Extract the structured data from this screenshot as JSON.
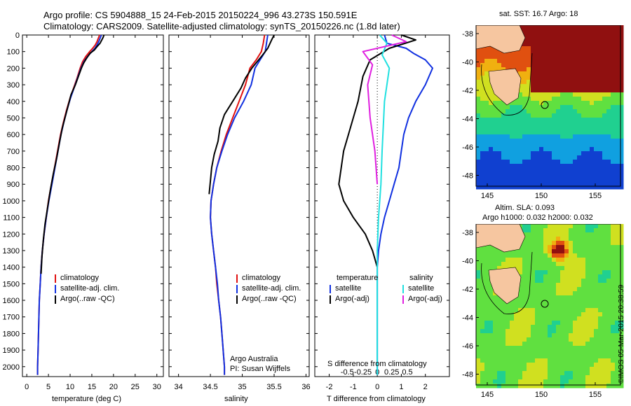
{
  "header": {
    "line1": "Argo profile: CS 5904888_15 24-Feb-2015 20150224_996 43.273S 150.591E",
    "line2": "Climatology: CARS2009. Satellite-adjusted climatology: synTS_20150226.nc (1.8d later)"
  },
  "colors": {
    "climatology": "#e01010",
    "satellite": "#1030e0",
    "argo": "#000000",
    "s_satellite": "#20e0e0",
    "s_argo": "#e020e0"
  },
  "depth_axis": {
    "ticks": [
      0,
      100,
      200,
      300,
      400,
      500,
      600,
      700,
      800,
      900,
      1000,
      1100,
      1200,
      1300,
      1400,
      1500,
      1600,
      1700,
      1800,
      1900,
      2000
    ],
    "range": [
      0,
      2060
    ]
  },
  "chart_data": [
    {
      "type": "line",
      "xlabel": "temperature (deg C)",
      "xlim": [
        -1,
        31.5
      ],
      "xticks": [
        0,
        5,
        10,
        15,
        20,
        25,
        30
      ],
      "legend": [
        "climatology",
        "satellite-adj. clim.",
        "Argo(..raw -QC)"
      ],
      "series": [
        {
          "name": "climatology",
          "color": "#e01010",
          "points": [
            [
              16.8,
              0
            ],
            [
              16.5,
              20
            ],
            [
              16.2,
              40
            ],
            [
              15.8,
              60
            ],
            [
              15.2,
              80
            ],
            [
              14.5,
              100
            ],
            [
              13.6,
              130
            ],
            [
              12.9,
              160
            ],
            [
              12.3,
              200
            ],
            [
              11.6,
              260
            ],
            [
              10.8,
              320
            ],
            [
              10,
              380
            ],
            [
              9.2,
              450
            ],
            [
              8.5,
              520
            ],
            [
              7.8,
              600
            ],
            [
              7.1,
              700
            ],
            [
              6.4,
              800
            ],
            [
              5.7,
              900
            ],
            [
              5.0,
              1000
            ],
            [
              4.5,
              1100
            ],
            [
              4.0,
              1200
            ],
            [
              3.6,
              1300
            ],
            [
              3.3,
              1400
            ],
            [
              3.1,
              1500
            ],
            [
              2.9,
              1600
            ],
            [
              2.8,
              1700
            ],
            [
              2.7,
              1800
            ],
            [
              2.6,
              1900
            ],
            [
              2.5,
              2000
            ],
            [
              2.5,
              2050
            ]
          ]
        },
        {
          "name": "satellite-adj. clim.",
          "color": "#1030e0",
          "points": [
            [
              17.2,
              0
            ],
            [
              16.9,
              20
            ],
            [
              16.6,
              40
            ],
            [
              16.2,
              60
            ],
            [
              15.7,
              80
            ],
            [
              15.0,
              100
            ],
            [
              14.0,
              130
            ],
            [
              13.2,
              160
            ],
            [
              12.5,
              200
            ],
            [
              11.7,
              260
            ],
            [
              10.9,
              320
            ],
            [
              10.1,
              380
            ],
            [
              9.3,
              450
            ],
            [
              8.6,
              520
            ],
            [
              7.9,
              600
            ],
            [
              7.2,
              700
            ],
            [
              6.5,
              800
            ],
            [
              5.8,
              900
            ],
            [
              5.1,
              1000
            ],
            [
              4.5,
              1100
            ],
            [
              4.0,
              1200
            ],
            [
              3.6,
              1300
            ],
            [
              3.3,
              1400
            ],
            [
              3.1,
              1500
            ],
            [
              2.9,
              1600
            ],
            [
              2.8,
              1700
            ],
            [
              2.7,
              1800
            ],
            [
              2.6,
              1900
            ],
            [
              2.5,
              2000
            ],
            [
              2.5,
              2050
            ]
          ]
        },
        {
          "name": "Argo(..raw -QC)",
          "color": "#000000",
          "points": [
            [
              17.8,
              0
            ],
            [
              17.6,
              15
            ],
            [
              17.3,
              30
            ],
            [
              16.9,
              50
            ],
            [
              16.2,
              70
            ],
            [
              15.6,
              90
            ],
            [
              14.6,
              110
            ],
            [
              13.8,
              140
            ],
            [
              13.1,
              170
            ],
            [
              12.6,
              200
            ],
            [
              11.9,
              250
            ],
            [
              11.2,
              300
            ],
            [
              10.2,
              360
            ],
            [
              9.6,
              420
            ],
            [
              8.9,
              490
            ],
            [
              8.2,
              560
            ],
            [
              7.6,
              640
            ],
            [
              6.9,
              740
            ],
            [
              6.1,
              840
            ],
            [
              5.4,
              940
            ],
            [
              4.8,
              1040
            ],
            [
              4.2,
              1140
            ],
            [
              3.8,
              1240
            ],
            [
              3.5,
              1340
            ],
            [
              3.3,
              1440
            ]
          ]
        }
      ]
    },
    {
      "type": "line",
      "xlabel": "salinity",
      "xlim": [
        33.85,
        36.05
      ],
      "xticks": [
        34,
        34.5,
        35,
        35.5,
        36
      ],
      "legend": [
        "climatology",
        "satellite-adj. clim.",
        "Argo(..raw -QC)"
      ],
      "series": [
        {
          "name": "climatology",
          "color": "#e01010",
          "points": [
            [
              35.35,
              0
            ],
            [
              35.33,
              50
            ],
            [
              35.3,
              100
            ],
            [
              35.22,
              150
            ],
            [
              35.12,
              200
            ],
            [
              35.05,
              300
            ],
            [
              34.95,
              400
            ],
            [
              34.85,
              500
            ],
            [
              34.75,
              600
            ],
            [
              34.67,
              700
            ],
            [
              34.6,
              800
            ],
            [
              34.55,
              900
            ],
            [
              34.51,
              1000
            ],
            [
              34.5,
              1100
            ],
            [
              34.52,
              1200
            ],
            [
              34.55,
              1300
            ],
            [
              34.58,
              1400
            ],
            [
              34.6,
              1500
            ],
            [
              34.63,
              1600
            ],
            [
              34.66,
              1700
            ],
            [
              34.68,
              1800
            ],
            [
              34.7,
              1900
            ],
            [
              34.72,
              2000
            ],
            [
              34.72,
              2050
            ]
          ]
        },
        {
          "name": "satellite-adj. clim.",
          "color": "#1030e0",
          "points": [
            [
              35.4,
              0
            ],
            [
              35.38,
              50
            ],
            [
              35.36,
              100
            ],
            [
              35.28,
              150
            ],
            [
              35.2,
              200
            ],
            [
              35.14,
              300
            ],
            [
              35.02,
              400
            ],
            [
              34.88,
              500
            ],
            [
              34.77,
              600
            ],
            [
              34.68,
              700
            ],
            [
              34.6,
              800
            ],
            [
              34.55,
              900
            ],
            [
              34.51,
              1000
            ],
            [
              34.5,
              1100
            ],
            [
              34.52,
              1200
            ],
            [
              34.55,
              1300
            ],
            [
              34.58,
              1400
            ],
            [
              34.61,
              1500
            ],
            [
              34.63,
              1600
            ],
            [
              34.66,
              1700
            ],
            [
              34.68,
              1800
            ],
            [
              34.7,
              1900
            ],
            [
              34.72,
              2000
            ],
            [
              34.72,
              2050
            ]
          ]
        },
        {
          "name": "Argo(..raw -QC)",
          "color": "#000000",
          "points": [
            [
              35.5,
              0
            ],
            [
              35.46,
              30
            ],
            [
              35.4,
              80
            ],
            [
              35.3,
              130
            ],
            [
              35.15,
              200
            ],
            [
              35.05,
              260
            ],
            [
              34.98,
              320
            ],
            [
              34.85,
              400
            ],
            [
              34.72,
              480
            ],
            [
              34.65,
              560
            ],
            [
              34.62,
              640
            ],
            [
              34.56,
              720
            ],
            [
              34.52,
              800
            ],
            [
              34.5,
              880
            ],
            [
              34.48,
              960
            ]
          ]
        }
      ]
    },
    {
      "type": "line",
      "xlabel": "T difference from climatology",
      "xlabel_top": "S difference from climatology",
      "xlim": [
        -2.6,
        3.0
      ],
      "xticks": [
        -2,
        -1,
        0,
        1,
        2
      ],
      "xticks_s": [
        "-0.5",
        "-0.25",
        "0",
        "0.25",
        "0.5"
      ],
      "legend_temperature": {
        "title": "temperature",
        "items": [
          "satellite",
          "Argo(-adj)"
        ]
      },
      "legend_salinity": {
        "title": "salinity",
        "items": [
          "satellite",
          "Argo(-adj)"
        ]
      },
      "series": [
        {
          "name": "T satellite",
          "color": "#1030e0",
          "points": [
            [
              0.3,
              0
            ],
            [
              0.4,
              50
            ],
            [
              1.2,
              80
            ],
            [
              1.5,
              110
            ],
            [
              2.0,
              150
            ],
            [
              2.3,
              200
            ],
            [
              2.0,
              300
            ],
            [
              1.6,
              400
            ],
            [
              1.3,
              500
            ],
            [
              1.1,
              600
            ],
            [
              1.0,
              700
            ],
            [
              0.9,
              800
            ],
            [
              0.7,
              900
            ],
            [
              0.5,
              1000
            ],
            [
              0.3,
              1100
            ],
            [
              0.15,
              1200
            ],
            [
              0.05,
              1300
            ],
            [
              0,
              1400
            ],
            [
              0,
              2050
            ]
          ]
        },
        {
          "name": "T Argo(-adj)",
          "color": "#000000",
          "points": [
            [
              1.0,
              0
            ],
            [
              1.6,
              30
            ],
            [
              0.5,
              80
            ],
            [
              -0.3,
              150
            ],
            [
              -0.6,
              250
            ],
            [
              -0.8,
              400
            ],
            [
              -1.2,
              600
            ],
            [
              -1.4,
              700
            ],
            [
              -1.5,
              800
            ],
            [
              -1.6,
              900
            ],
            [
              -1.4,
              1000
            ],
            [
              -1.0,
              1100
            ],
            [
              -0.5,
              1200
            ],
            [
              -0.2,
              1300
            ],
            [
              0,
              1400
            ]
          ]
        },
        {
          "name": "S satellite",
          "color": "#20e0e0",
          "points": [
            [
              0.1,
              0
            ],
            [
              0.4,
              50
            ],
            [
              0.2,
              120
            ],
            [
              0.5,
              200
            ],
            [
              0.3,
              400
            ],
            [
              0.2,
              700
            ],
            [
              0.15,
              900
            ],
            [
              0.05,
              1100
            ],
            [
              0,
              1300
            ],
            [
              0,
              2050
            ]
          ]
        },
        {
          "name": "S Argo(-adj)",
          "color": "#e020e0",
          "points": [
            [
              0.6,
              0
            ],
            [
              1.2,
              40
            ],
            [
              -0.6,
              100
            ],
            [
              -0.2,
              180
            ],
            [
              -0.4,
              300
            ],
            [
              -0.3,
              500
            ],
            [
              -0.1,
              700
            ],
            [
              0,
              900
            ]
          ]
        }
      ]
    },
    {
      "type": "heatmap",
      "title": "sat. SST: 16.7 Argo: 18",
      "xticks": [
        "145",
        "150",
        "155"
      ],
      "yticks": [
        "-38",
        "-40",
        "-42",
        "-44",
        "-46",
        "-48"
      ]
    },
    {
      "type": "heatmap",
      "title_line1": "Altim. SLA: 0.093",
      "title_line2": "Argo h1000: 0.032 h2000: 0.032",
      "xticks": [
        "145",
        "150",
        "155"
      ],
      "yticks": [
        "-38",
        "-40",
        "-42",
        "-44",
        "-46",
        "-48"
      ]
    }
  ],
  "annotations": {
    "argo_australia": "Argo Australia",
    "pi": "PI: Susan Wijffels",
    "credit": "©IMOS 05-Mar-2015 20:38:59"
  }
}
